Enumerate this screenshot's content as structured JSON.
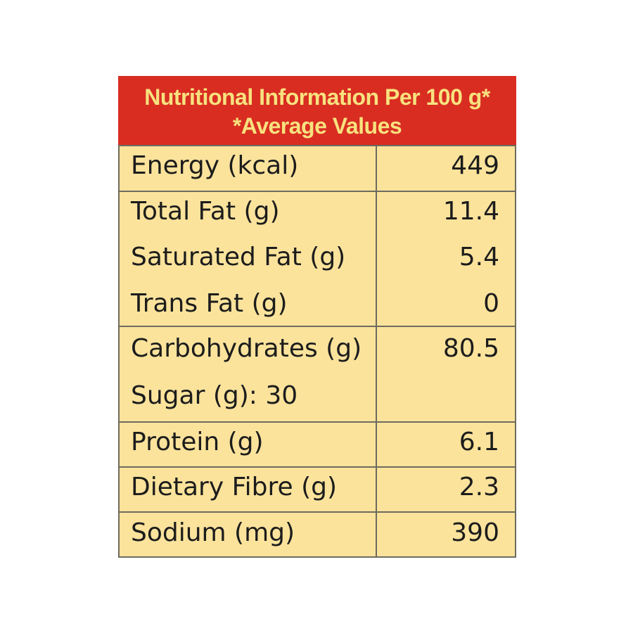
{
  "header": {
    "line1": "Nutritional Information Per 100 g*",
    "line2": "*Average Values"
  },
  "rows": [
    {
      "label": "Energy (kcal)",
      "value": "449"
    },
    {
      "label": "Total Fat (g)",
      "value": "11.4"
    },
    {
      "label": "Saturated Fat (g)",
      "value": "5.4"
    },
    {
      "label": "Trans Fat (g)",
      "value": "0"
    },
    {
      "label": "Carbohydrates (g)",
      "value": "80.5"
    },
    {
      "label": "Sugar (g): 30",
      "value": ""
    },
    {
      "label": "Protein (g)",
      "value": "6.1"
    },
    {
      "label": "Dietary Fibre (g)",
      "value": "2.3"
    },
    {
      "label": "Sodium (mg)",
      "value": "390"
    }
  ],
  "colors": {
    "header_bg": "#d92d22",
    "header_text": "#f7e27e",
    "table_bg": "#fbe39c",
    "border": "#6e6b5e",
    "text": "#1c1c1c"
  }
}
